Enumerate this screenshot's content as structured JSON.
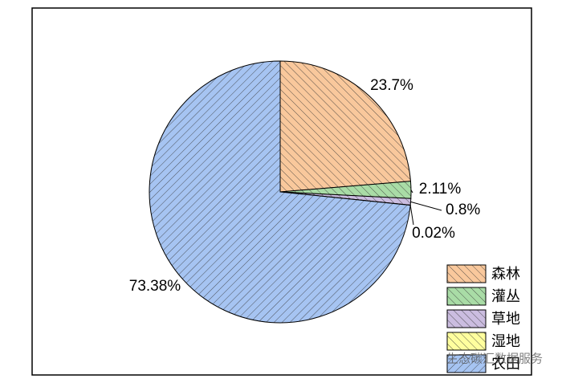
{
  "chart_data": {
    "type": "pie",
    "categories": [
      "森林",
      "灌丛",
      "草地",
      "湿地",
      "农田"
    ],
    "values": [
      23.7,
      2.11,
      0.8,
      0.02,
      73.38
    ],
    "value_labels": [
      "23.7%",
      "2.11%",
      "0.8%",
      "0.02%",
      "73.38%"
    ],
    "colors": [
      "#f9c89c",
      "#a9dca6",
      "#cbbde0",
      "#ffff9e",
      "#a6c4f2"
    ],
    "legend": "lower right",
    "watermark": "生态碳汇数据服务"
  }
}
